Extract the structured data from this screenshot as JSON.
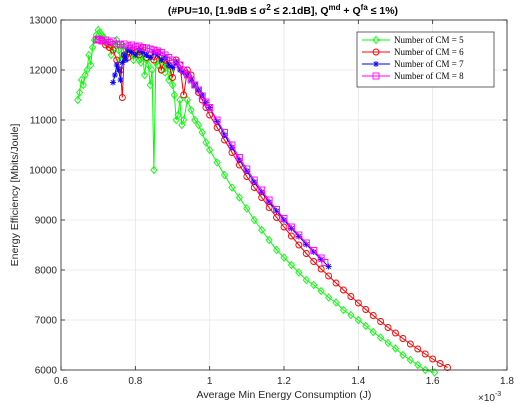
{
  "chart_data": {
    "type": "line",
    "title": {
      "prefix": "(#PU=10, [1.9dB ≤ σ",
      "sigma_sup": "2",
      "middle": " ≤ 2.1dB], Q",
      "md_sup": "md",
      "plus": " + Q",
      "fa_sup": "fa",
      "suffix": " ≤ 1%)"
    },
    "xlabel": "Average Min Energy Consumption (J)",
    "ylabel": "Energy Efficiency [Mbits/Joule]",
    "x_multiplier": "×10",
    "x_multiplier_exp": "-3",
    "xlim": [
      0.6,
      1.8
    ],
    "ylim": [
      6000,
      13000
    ],
    "x_ticks": [
      "0.6",
      "0.8",
      "1",
      "1.2",
      "1.4",
      "1.6",
      "1.8"
    ],
    "y_ticks": [
      "6000",
      "7000",
      "8000",
      "9000",
      "10000",
      "11000",
      "12000",
      "13000"
    ],
    "x_unit_scale": "1e-3",
    "grid": true,
    "legend_position": "top-right",
    "series": [
      {
        "name": "Number of CM = 5",
        "color": "#00ff00",
        "marker": "diamond",
        "x": [
          0.645,
          0.65,
          0.655,
          0.66,
          0.665,
          0.67,
          0.675,
          0.68,
          0.685,
          0.69,
          0.695,
          0.7,
          0.705,
          0.71,
          0.715,
          0.72,
          0.725,
          0.73,
          0.735,
          0.74,
          0.745,
          0.75,
          0.755,
          0.76,
          0.765,
          0.77,
          0.775,
          0.78,
          0.785,
          0.79,
          0.795,
          0.8,
          0.805,
          0.81,
          0.815,
          0.82,
          0.825,
          0.83,
          0.835,
          0.84,
          0.845,
          0.85,
          0.855,
          0.86,
          0.865,
          0.87,
          0.875,
          0.88,
          0.885,
          0.89,
          0.895,
          0.9,
          0.905,
          0.91,
          0.915,
          0.92,
          0.925,
          0.93,
          0.94,
          0.95,
          0.96,
          0.97,
          0.98,
          0.99,
          1.0,
          1.02,
          1.04,
          1.06,
          1.08,
          1.1,
          1.12,
          1.14,
          1.16,
          1.18,
          1.2,
          1.22,
          1.24,
          1.26,
          1.28,
          1.3,
          1.32,
          1.34,
          1.36,
          1.38,
          1.4,
          1.42,
          1.44,
          1.46,
          1.48,
          1.5,
          1.52,
          1.54,
          1.56,
          1.58,
          1.605
        ],
        "y": [
          11400,
          11550,
          11800,
          11700,
          11900,
          12000,
          12300,
          12100,
          12450,
          12600,
          12700,
          12800,
          12750,
          12700,
          12650,
          12600,
          12500,
          12550,
          12300,
          12500,
          12450,
          12600,
          12400,
          12200,
          12500,
          12300,
          12400,
          12350,
          12450,
          12300,
          12200,
          12400,
          12300,
          12200,
          12150,
          12300,
          11900,
          12200,
          12100,
          11700,
          12000,
          10000,
          12150,
          12100,
          12200,
          12000,
          12300,
          11950,
          12100,
          11800,
          12000,
          11700,
          11500,
          11000,
          11100,
          11400,
          10900,
          11000,
          11400,
          11200,
          11000,
          10900,
          10750,
          10550,
          10400,
          10150,
          9900,
          9650,
          9450,
          9230,
          9000,
          8800,
          8600,
          8400,
          8250,
          8100,
          7950,
          7800,
          7700,
          7580,
          7450,
          7350,
          7200,
          7100,
          7000,
          6880,
          6760,
          6650,
          6540,
          6430,
          6300,
          6200,
          6100,
          6000,
          5950
        ]
      },
      {
        "name": "Number of CM = 6",
        "color": "#ff0000",
        "marker": "circle",
        "x": [
          0.7,
          0.71,
          0.72,
          0.73,
          0.74,
          0.75,
          0.76,
          0.765,
          0.77,
          0.78,
          0.79,
          0.8,
          0.81,
          0.82,
          0.83,
          0.84,
          0.85,
          0.86,
          0.87,
          0.88,
          0.89,
          0.9,
          0.91,
          0.92,
          0.93,
          0.94,
          0.95,
          0.96,
          0.97,
          0.98,
          0.99,
          1.0,
          1.02,
          1.04,
          1.06,
          1.08,
          1.1,
          1.12,
          1.14,
          1.16,
          1.18,
          1.2,
          1.22,
          1.24,
          1.26,
          1.28,
          1.3,
          1.32,
          1.34,
          1.36,
          1.38,
          1.4,
          1.42,
          1.44,
          1.46,
          1.48,
          1.5,
          1.52,
          1.54,
          1.56,
          1.58,
          1.6,
          1.62,
          1.64
        ],
        "y": [
          12600,
          12580,
          12500,
          12450,
          12400,
          12200,
          12000,
          11450,
          12300,
          12250,
          12400,
          12350,
          12300,
          12450,
          12250,
          12300,
          12200,
          12350,
          12000,
          12200,
          12100,
          11850,
          12200,
          12100,
          11500,
          12000,
          11900,
          11700,
          11550,
          11400,
          11250,
          11100,
          10850,
          10600,
          10350,
          10100,
          9870,
          9650,
          9450,
          9250,
          9050,
          8860,
          8680,
          8500,
          8330,
          8170,
          8020,
          7880,
          7740,
          7600,
          7470,
          7340,
          7210,
          7090,
          6970,
          6850,
          6740,
          6630,
          6520,
          6420,
          6320,
          6220,
          6130,
          6050
        ]
      },
      {
        "name": "Number of CM = 7",
        "color": "#0000ff",
        "marker": "asterisk",
        "x": [
          0.74,
          0.745,
          0.75,
          0.755,
          0.76,
          0.765,
          0.77,
          0.775,
          0.78,
          0.79,
          0.8,
          0.81,
          0.82,
          0.83,
          0.84,
          0.85,
          0.86,
          0.87,
          0.88,
          0.89,
          0.9,
          0.91,
          0.92,
          0.93,
          0.94,
          0.95,
          0.96,
          0.97,
          0.98,
          0.99,
          1.0,
          1.02,
          1.04,
          1.06,
          1.08,
          1.1,
          1.12,
          1.14,
          1.16,
          1.18,
          1.2,
          1.22,
          1.24,
          1.26,
          1.28,
          1.3,
          1.32
        ],
        "y": [
          11750,
          11900,
          12100,
          12000,
          11800,
          12150,
          12300,
          12200,
          12400,
          12350,
          12300,
          12400,
          12350,
          12300,
          12250,
          12350,
          12300,
          12200,
          12250,
          12100,
          12050,
          12150,
          12000,
          11950,
          11900,
          11800,
          11700,
          11600,
          11500,
          11350,
          11250,
          10970,
          10700,
          10450,
          10200,
          9980,
          9760,
          9560,
          9360,
          9180,
          9000,
          8830,
          8670,
          8510,
          8360,
          8210,
          8070
        ]
      },
      {
        "name": "Number of CM = 8",
        "color": "#ff00ff",
        "marker": "square",
        "x": [
          0.695,
          0.7,
          0.705,
          0.71,
          0.72,
          0.73,
          0.74,
          0.75,
          0.76,
          0.77,
          0.78,
          0.79,
          0.8,
          0.81,
          0.82,
          0.83,
          0.84,
          0.85,
          0.86,
          0.87,
          0.88,
          0.89,
          0.9,
          0.91,
          0.92,
          0.93,
          0.94,
          0.95,
          0.96,
          0.97,
          0.98,
          0.99,
          1.0,
          1.02,
          1.04,
          1.06,
          1.08,
          1.1,
          1.12,
          1.14,
          1.16,
          1.18,
          1.2,
          1.22,
          1.24,
          1.26,
          1.28,
          1.3,
          1.31
        ],
        "y": [
          12600,
          12620,
          12600,
          12580,
          12600,
          12550,
          12580,
          12520,
          12500,
          12520,
          12480,
          12500,
          12460,
          12480,
          12450,
          12440,
          12420,
          12400,
          12380,
          12350,
          12300,
          12250,
          12200,
          12150,
          12100,
          12000,
          11900,
          11800,
          11700,
          11600,
          11480,
          11360,
          11250,
          11000,
          10750,
          10500,
          10250,
          10020,
          9800,
          9600,
          9400,
          9210,
          9030,
          8860,
          8700,
          8540,
          8390,
          8240,
          8150
        ]
      }
    ]
  }
}
